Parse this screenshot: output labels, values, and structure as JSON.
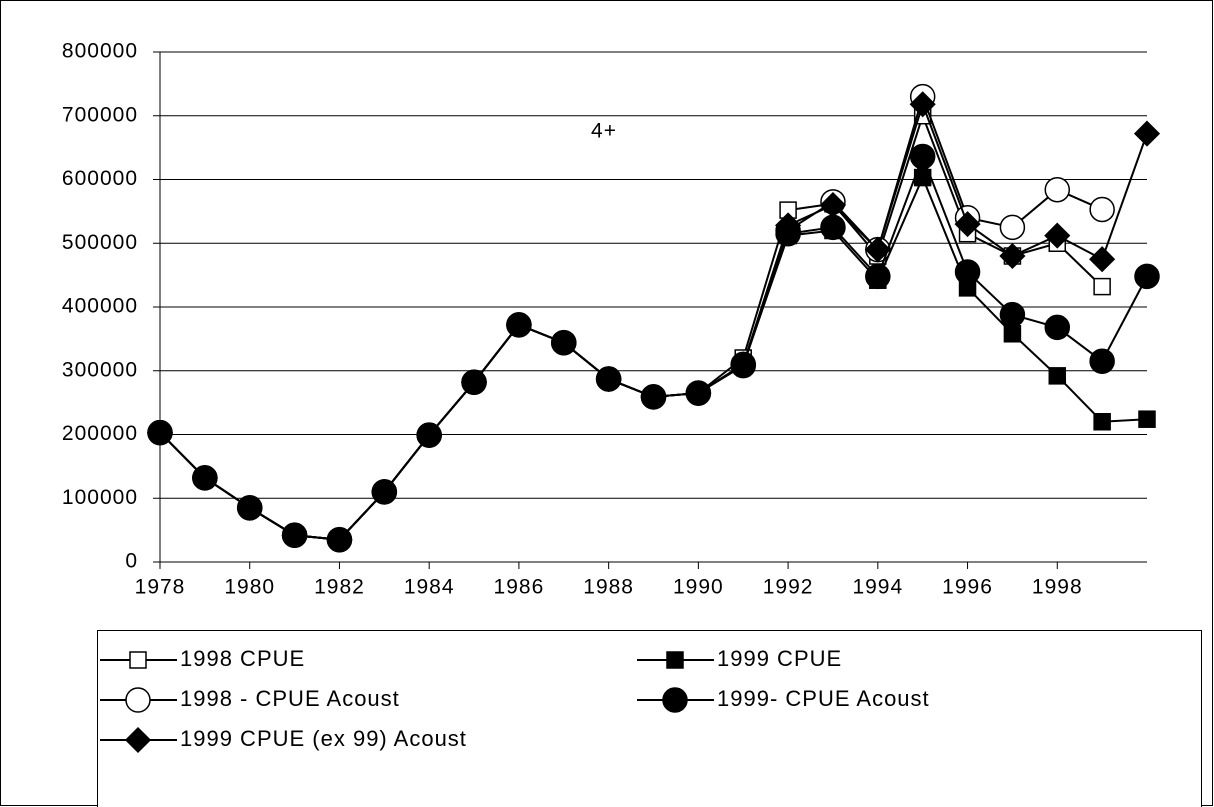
{
  "chart_data": {
    "type": "line",
    "annotation": "4+",
    "x": [
      1978,
      1979,
      1980,
      1981,
      1982,
      1983,
      1984,
      1985,
      1986,
      1987,
      1988,
      1989,
      1990,
      1991,
      1992,
      1993,
      1994,
      1995,
      1996,
      1997,
      1998,
      1999,
      2000
    ],
    "xlim": [
      1978,
      2000
    ],
    "xticks": [
      1978,
      1980,
      1982,
      1984,
      1986,
      1988,
      1990,
      1992,
      1994,
      1996,
      1998
    ],
    "ylim": [
      0,
      800000
    ],
    "yticks": [
      0,
      100000,
      200000,
      300000,
      400000,
      500000,
      600000,
      700000,
      800000
    ],
    "grid": true,
    "legend": "bottom",
    "series": [
      {
        "name": "1998 CPUE",
        "color": "#000000",
        "marker": "square",
        "filled": false,
        "values": [
          203000,
          132000,
          85000,
          42000,
          35000,
          110000,
          199000,
          282000,
          372000,
          344000,
          287000,
          259000,
          265000,
          320000,
          552000,
          562000,
          480000,
          700000,
          515000,
          480000,
          500000,
          432000,
          null
        ]
      },
      {
        "name": "1999 CPUE",
        "color": "#000000",
        "marker": "square",
        "filled": true,
        "values": [
          203000,
          132000,
          85000,
          42000,
          35000,
          110000,
          199000,
          282000,
          372000,
          344000,
          287000,
          259000,
          265000,
          310000,
          512000,
          520000,
          442000,
          603000,
          430000,
          358000,
          292000,
          220000,
          224000
        ]
      },
      {
        "name": "1998 - CPUE Acoust",
        "color": "#000000",
        "marker": "circle",
        "filled": false,
        "values": [
          203000,
          132000,
          85000,
          42000,
          35000,
          110000,
          199000,
          282000,
          372000,
          344000,
          287000,
          259000,
          265000,
          310000,
          520000,
          565000,
          490000,
          730000,
          540000,
          525000,
          584000,
          553000,
          null
        ]
      },
      {
        "name": "1999- CPUE Acoust",
        "color": "#000000",
        "marker": "circle",
        "filled": true,
        "values": [
          203000,
          132000,
          85000,
          42000,
          35000,
          110000,
          199000,
          282000,
          372000,
          344000,
          287000,
          259000,
          265000,
          308000,
          515000,
          525000,
          448000,
          636000,
          455000,
          388000,
          368000,
          315000,
          448000
        ]
      },
      {
        "name": "1999 CPUE (ex 99) Acoust",
        "color": "#000000",
        "marker": "diamond",
        "filled": true,
        "values": [
          203000,
          132000,
          85000,
          42000,
          35000,
          110000,
          199000,
          282000,
          372000,
          344000,
          287000,
          259000,
          265000,
          310000,
          528000,
          560000,
          490000,
          718000,
          530000,
          480000,
          512000,
          475000,
          672000
        ]
      }
    ]
  }
}
